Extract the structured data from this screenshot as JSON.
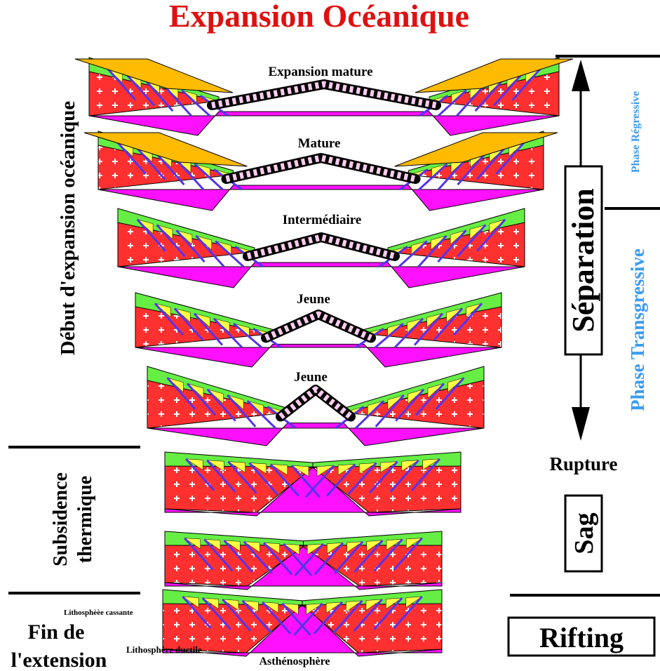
{
  "title": "Expansion Océanique",
  "sections": [
    {
      "label": "Expansion mature"
    },
    {
      "label": "Mature"
    },
    {
      "label": "Intermédiaire"
    },
    {
      "label": "Jeune"
    },
    {
      "label": "Jeune"
    }
  ],
  "left_labels": {
    "early_spreading": "Début d'expansion océanique",
    "thermal_subsidence": [
      "Subsidence",
      "thermique"
    ],
    "end_extension": [
      "Fin de",
      "l'extension"
    ]
  },
  "right_labels": {
    "separation": "Séparation",
    "regressive": "Phase Régressive",
    "transgressive": "Phase Transgressive",
    "rupture": "Rupture",
    "sag": "Sag",
    "rifting": "Rifting"
  },
  "annotations": [
    "Lithosphèèe cassante",
    "Lithosphère ductile",
    "Asthénosphère"
  ]
}
